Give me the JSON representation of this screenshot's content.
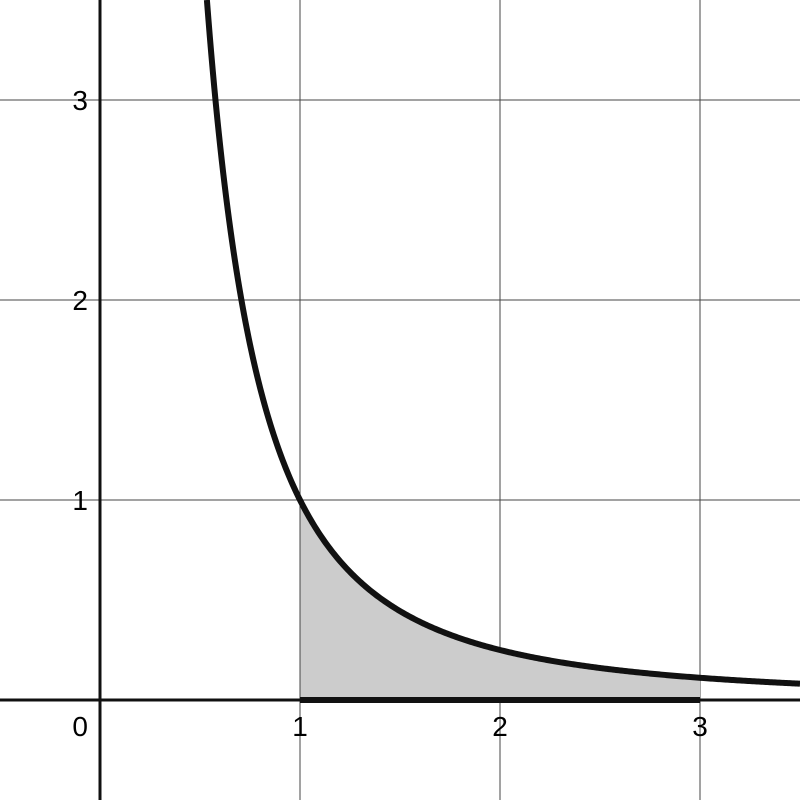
{
  "chart_data": {
    "type": "area",
    "function": "y = 1/x^2",
    "curve": {
      "x": [
        0.535,
        0.6,
        0.7,
        0.8,
        1,
        1.25,
        1.5,
        2,
        2.5,
        3,
        3.5
      ],
      "y": [
        3.5,
        2.778,
        2.041,
        1.5625,
        1,
        0.64,
        0.444,
        0.25,
        0.16,
        0.111,
        0.082
      ]
    },
    "shaded_interval": [
      1,
      3
    ],
    "xlim": [
      -0.5,
      3.5
    ],
    "ylim": [
      -0.5,
      3.5
    ],
    "x_ticks": [
      "1",
      "2",
      "3"
    ],
    "y_ticks": [
      "1",
      "2",
      "3"
    ],
    "origin_label": "0",
    "grid": true,
    "colors": {
      "curve": "#111111",
      "fill": "#cccccc",
      "grid": "#444444",
      "axis": "#111111"
    }
  }
}
